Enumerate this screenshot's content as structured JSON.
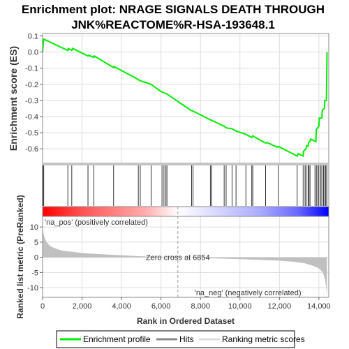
{
  "chart_data": {
    "type": "line",
    "title_line1": "Enrichment plot: NRAGE SIGNALS DEATH THROUGH",
    "title_line2": "JNK%REACTOME%R-HSA-193648.1",
    "es_ylabel": "Enrichment score (ES)",
    "rank_ylabel": "Ranked list metric (PreRanked)",
    "xlabel": "Rank in Ordered Dataset",
    "xlim": [
      0,
      14500
    ],
    "es_ylim": [
      -0.69,
      0.115
    ],
    "rank_ylim": [
      -13.2,
      13.5
    ],
    "x_ticks": [
      0,
      2000,
      4000,
      6000,
      8000,
      10000,
      12000,
      14000
    ],
    "x_tick_labels": [
      "0",
      "2,000",
      "4,000",
      "6,000",
      "8,000",
      "10,000",
      "12,000",
      "14,000"
    ],
    "es_yticks": [
      0.1,
      0.0,
      -0.1,
      -0.2,
      -0.3,
      -0.4,
      -0.5,
      -0.6
    ],
    "es_ytick_labels": [
      "0.1",
      "0.0",
      "-0.1",
      "-0.2",
      "-0.3",
      "-0.4",
      "-0.5",
      "-0.6"
    ],
    "rank_yticks": [
      10,
      5,
      0,
      -5,
      -10
    ],
    "rank_ytick_labels": [
      "10",
      "5",
      "0",
      "-5",
      "-10"
    ],
    "es_series": {
      "name": "Enrichment profile",
      "color": "#00ee00",
      "x": [
        0,
        60,
        1280,
        1300,
        1480,
        1520,
        2300,
        2330,
        2600,
        2620,
        3600,
        3620,
        4850,
        4900,
        5000,
        5500,
        6000,
        6200,
        6300,
        7500,
        7600,
        8500,
        8600,
        9200,
        9300,
        9600,
        9800,
        10300,
        10600,
        10650,
        11300,
        11350,
        11900,
        11950,
        12900,
        12950,
        13200,
        13220,
        13350,
        13380,
        13450,
        13480,
        13550,
        13580,
        13850,
        13870,
        14000,
        14020,
        14150,
        14170,
        14280,
        14300,
        14380,
        14400,
        14410
      ],
      "y": [
        0.0,
        0.08,
        0.01,
        0.022,
        0.01,
        0.023,
        -0.025,
        -0.02,
        -0.033,
        -0.025,
        -0.096,
        -0.09,
        -0.17,
        -0.175,
        -0.18,
        -0.2,
        -0.245,
        -0.255,
        -0.26,
        -0.36,
        -0.365,
        -0.42,
        -0.425,
        -0.46,
        -0.47,
        -0.475,
        -0.49,
        -0.51,
        -0.53,
        -0.52,
        -0.565,
        -0.56,
        -0.59,
        -0.585,
        -0.645,
        -0.63,
        -0.645,
        -0.615,
        -0.6,
        -0.58,
        -0.585,
        -0.56,
        -0.555,
        -0.54,
        -0.555,
        -0.48,
        -0.46,
        -0.41,
        -0.41,
        -0.36,
        -0.35,
        -0.3,
        -0.3,
        -0.12,
        0.0
      ]
    },
    "hits_label": "Hits",
    "hits": [
      20,
      60,
      1280,
      1480,
      2300,
      2600,
      3600,
      4850,
      4950,
      5500,
      6050,
      6150,
      6250,
      6300,
      7550,
      7620,
      8500,
      8580,
      9200,
      9300,
      9600,
      9800,
      10300,
      10600,
      10650,
      11300,
      11950,
      12900,
      13200,
      13300,
      13350,
      13450,
      13500,
      13550,
      13800,
      13870,
      13950,
      14000,
      14100,
      14150,
      14230,
      14300,
      14350,
      14400
    ],
    "metric_label": "Ranking metric scores",
    "metric_x": [
      0,
      30,
      100,
      200,
      400,
      700,
      1000,
      1500,
      2000,
      3000,
      4000,
      5000,
      6000,
      6854,
      8000,
      9000,
      10000,
      11000,
      12000,
      12800,
      13300,
      13700,
      14000,
      14200,
      14320,
      14380,
      14410
    ],
    "metric_y": [
      11.8,
      8.5,
      6.5,
      5.0,
      3.6,
      2.8,
      2.2,
      1.8,
      1.4,
      1.0,
      0.65,
      0.35,
      0.12,
      0.0,
      -0.2,
      -0.4,
      -0.6,
      -0.85,
      -1.1,
      -1.5,
      -2.0,
      -2.8,
      -3.6,
      -5.0,
      -7.5,
      -10.5,
      -12.5
    ],
    "zero_cross_label": "Zero cross at 6854",
    "zero_cross": 6854,
    "pos_label": "'na_pos' (positively correlated)",
    "neg_label": "'na_neg' (negatively correlated)",
    "legend_placement": "bottom",
    "legend_entries": [
      "Enrichment profile",
      "Hits",
      "Ranking metric scores"
    ],
    "colors": {
      "es_line": "#00ee00",
      "hits": "#000000",
      "metric_fill": "#c0c0c0",
      "pos_text": "#cc0000",
      "neg_text": "#0000cc",
      "zero_line": "#999999",
      "grid": "#dddddd",
      "heat_pos": "#ff0000",
      "heat_mid": "#ffffff",
      "heat_neg": "#0000ff"
    }
  }
}
